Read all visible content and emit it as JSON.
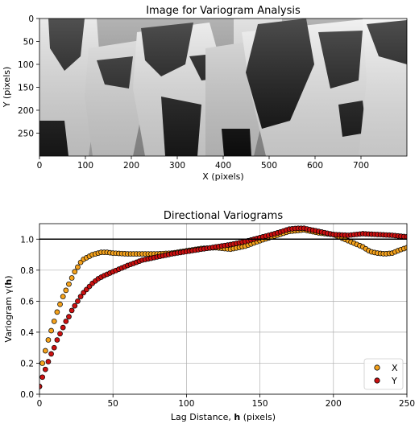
{
  "figure": {
    "top_title": "Image for Variogram Analysis",
    "bottom_title": "Directional Variograms"
  },
  "chart_data": [
    {
      "type": "heatmap",
      "title": "Image for Variogram Analysis",
      "xlabel": "X (pixels)",
      "ylabel": "Y (pixels)",
      "xlim": [
        0,
        800
      ],
      "ylim": [
        300,
        0
      ],
      "x_ticks": [
        0,
        100,
        200,
        300,
        400,
        500,
        600,
        700
      ],
      "y_ticks": [
        0,
        50,
        100,
        150,
        200,
        250
      ],
      "colormap": "gray",
      "content": "grayscale photograph"
    },
    {
      "type": "scatter",
      "title": "Directional Variograms",
      "xlabel_prefix": "Lag Distance, ",
      "xlabel_bold": "h",
      "xlabel_suffix": " (pixels)",
      "ylabel_prefix": "Variogram γ(",
      "ylabel_bold": "h",
      "ylabel_suffix": ")",
      "xlim": [
        0,
        250
      ],
      "ylim": [
        0,
        1.1
      ],
      "x_ticks": [
        0,
        50,
        100,
        150,
        200,
        250
      ],
      "y_ticks": [
        0.0,
        0.2,
        0.4,
        0.6,
        0.8,
        1.0
      ],
      "grid": true,
      "sill": 1.0,
      "legend_position": "lower-right",
      "lag_step": 2,
      "series": [
        {
          "name": "X",
          "color": "#f5a21c",
          "knots": [
            [
              0,
              0.05
            ],
            [
              2,
              0.2
            ],
            [
              4,
              0.28
            ],
            [
              6,
              0.35
            ],
            [
              8,
              0.41
            ],
            [
              10,
              0.47
            ],
            [
              12,
              0.53
            ],
            [
              14,
              0.58
            ],
            [
              16,
              0.63
            ],
            [
              18,
              0.67
            ],
            [
              20,
              0.71
            ],
            [
              22,
              0.75
            ],
            [
              24,
              0.79
            ],
            [
              26,
              0.82
            ],
            [
              28,
              0.85
            ],
            [
              30,
              0.87
            ],
            [
              32,
              0.88
            ],
            [
              34,
              0.89
            ],
            [
              36,
              0.9
            ],
            [
              38,
              0.905
            ],
            [
              40,
              0.91
            ],
            [
              42,
              0.915
            ],
            [
              46,
              0.915
            ],
            [
              50,
              0.91
            ],
            [
              60,
              0.905
            ],
            [
              70,
              0.905
            ],
            [
              80,
              0.905
            ],
            [
              90,
              0.91
            ],
            [
              100,
              0.925
            ],
            [
              110,
              0.94
            ],
            [
              120,
              0.945
            ],
            [
              125,
              0.94
            ],
            [
              130,
              0.935
            ],
            [
              140,
              0.955
            ],
            [
              150,
              0.99
            ],
            [
              160,
              1.02
            ],
            [
              170,
              1.05
            ],
            [
              180,
              1.06
            ],
            [
              190,
              1.04
            ],
            [
              200,
              1.03
            ],
            [
              210,
              0.99
            ],
            [
              215,
              0.97
            ],
            [
              220,
              0.95
            ],
            [
              225,
              0.92
            ],
            [
              230,
              0.91
            ],
            [
              235,
              0.905
            ],
            [
              240,
              0.91
            ],
            [
              245,
              0.93
            ],
            [
              250,
              0.945
            ]
          ]
        },
        {
          "name": "Y",
          "color": "#cc1010",
          "knots": [
            [
              0,
              0.05
            ],
            [
              2,
              0.11
            ],
            [
              4,
              0.16
            ],
            [
              6,
              0.21
            ],
            [
              8,
              0.26
            ],
            [
              10,
              0.3
            ],
            [
              12,
              0.35
            ],
            [
              14,
              0.39
            ],
            [
              16,
              0.43
            ],
            [
              18,
              0.47
            ],
            [
              20,
              0.5
            ],
            [
              22,
              0.54
            ],
            [
              24,
              0.57
            ],
            [
              26,
              0.6
            ],
            [
              28,
              0.63
            ],
            [
              30,
              0.655
            ],
            [
              32,
              0.675
            ],
            [
              34,
              0.695
            ],
            [
              36,
              0.715
            ],
            [
              38,
              0.73
            ],
            [
              40,
              0.745
            ],
            [
              44,
              0.765
            ],
            [
              50,
              0.79
            ],
            [
              60,
              0.83
            ],
            [
              70,
              0.865
            ],
            [
              80,
              0.885
            ],
            [
              90,
              0.905
            ],
            [
              100,
              0.92
            ],
            [
              110,
              0.935
            ],
            [
              120,
              0.95
            ],
            [
              130,
              0.965
            ],
            [
              140,
              0.985
            ],
            [
              150,
              1.01
            ],
            [
              160,
              1.035
            ],
            [
              170,
              1.065
            ],
            [
              175,
              1.07
            ],
            [
              180,
              1.07
            ],
            [
              190,
              1.05
            ],
            [
              200,
              1.03
            ],
            [
              210,
              1.025
            ],
            [
              220,
              1.035
            ],
            [
              230,
              1.03
            ],
            [
              240,
              1.025
            ],
            [
              250,
              1.015
            ]
          ]
        }
      ]
    }
  ]
}
